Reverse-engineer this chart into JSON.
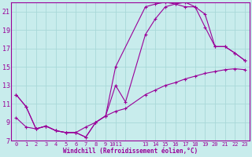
{
  "xlabel": "Windchill (Refroidissement éolien,°C)",
  "bg_color": "#c8ecec",
  "grid_color": "#a8d8d8",
  "line_color": "#990099",
  "xlim": [
    -0.5,
    23.5
  ],
  "ylim": [
    7,
    22
  ],
  "yticks": [
    7,
    9,
    11,
    13,
    15,
    17,
    19,
    21
  ],
  "xticks": [
    0,
    1,
    2,
    3,
    4,
    5,
    6,
    7,
    8,
    9,
    10,
    11,
    13,
    14,
    15,
    16,
    17,
    18,
    19,
    20,
    21,
    22,
    23
  ],
  "xticklabels": [
    "0",
    "1",
    "2",
    "3",
    "4",
    "5",
    "6",
    "7",
    "8",
    "9",
    "1011",
    "",
    "13",
    "14",
    "15",
    "16",
    "17",
    "18",
    "19",
    "20",
    "21",
    "22",
    "23"
  ],
  "curve1_x": [
    0,
    1,
    2,
    3,
    4,
    5,
    6,
    7,
    8,
    9,
    10,
    13,
    14,
    15,
    16,
    17,
    18,
    19,
    20,
    21,
    22,
    23
  ],
  "curve1_y": [
    12.0,
    10.7,
    8.3,
    8.6,
    8.1,
    7.9,
    7.9,
    7.4,
    9.0,
    9.7,
    15.0,
    21.5,
    21.8,
    22.0,
    21.8,
    21.5,
    21.5,
    20.7,
    17.2,
    17.2,
    16.5,
    15.7
  ],
  "curve2_x": [
    0,
    1,
    2,
    3,
    4,
    5,
    6,
    7,
    8,
    9,
    10,
    11,
    13,
    14,
    15,
    16,
    17,
    18,
    19,
    20,
    21,
    22,
    23
  ],
  "curve2_y": [
    12.0,
    10.7,
    8.3,
    8.6,
    8.1,
    7.9,
    7.9,
    7.4,
    9.0,
    9.7,
    13.0,
    11.2,
    18.5,
    20.2,
    21.5,
    21.8,
    22.0,
    21.5,
    19.3,
    17.2,
    17.2,
    16.5,
    15.7
  ],
  "curve3_x": [
    0,
    1,
    2,
    3,
    4,
    5,
    6,
    7,
    8,
    9,
    10,
    11,
    13,
    14,
    15,
    16,
    17,
    18,
    19,
    20,
    21,
    22,
    23
  ],
  "curve3_y": [
    9.5,
    8.5,
    8.3,
    8.6,
    8.1,
    7.9,
    7.9,
    8.5,
    9.0,
    9.7,
    10.2,
    10.5,
    12.0,
    12.5,
    13.0,
    13.3,
    13.7,
    14.0,
    14.3,
    14.5,
    14.7,
    14.8,
    14.7
  ]
}
